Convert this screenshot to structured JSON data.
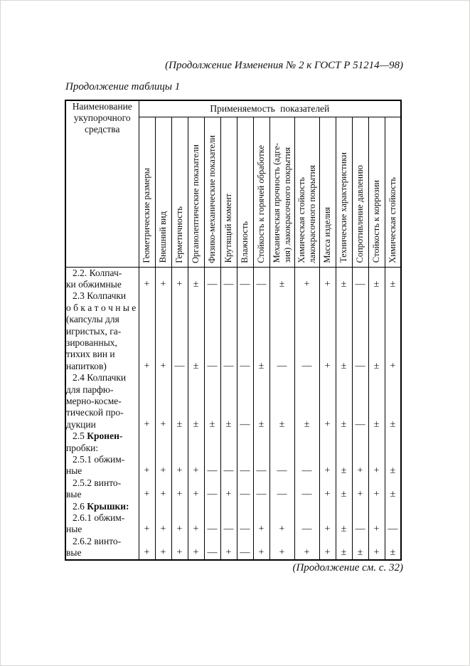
{
  "page": {
    "header_note": "(Продолжение Изменения № 2 к ГОСТ  Р 51214—98)",
    "table_caption": "Продолжение таблицы 1",
    "footer_note": "(Продолжение см. с. 32)"
  },
  "table": {
    "corner_header": "Наименование\nукупорочного\nсредства",
    "group_header": "Применяемость показателей",
    "columns": [
      "Геометрические размеры",
      "Внешний вид",
      "Герметичность",
      "Органолептические показатели",
      "Физико-механические показатели",
      "Крутящий момент",
      "Влажность",
      "Стойкость к горячей обработке",
      "Механическая прочность (адге-\nзия) лакокрасочного покрытия",
      "Химическая стойкость\nлакокрасочного покрытия",
      "Масса изделия",
      "Технические характеристики",
      "Сопротивление давлению",
      "Стойкость к коррозии",
      "Химическая стойкость"
    ],
    "rows": [
      {
        "label": "2.2. Колпач-\nки обжимные",
        "values": [
          "+",
          "+",
          "+",
          "±",
          "—",
          "—",
          "—",
          "—",
          "±",
          "+",
          "+",
          "±",
          "—",
          "±",
          "±"
        ]
      },
      {
        "label": "2.3 Колпачки\nо б к а т о ч н ы е\n(капсулы для\nигристых, га-\nзированных,\nтихих вин и\nнапитков)",
        "values": [
          "+",
          "+",
          "—",
          "±",
          "—",
          "—",
          "—",
          "±",
          "—",
          "—",
          "+",
          "±",
          "—",
          "±",
          "+"
        ]
      },
      {
        "label": "2.4 Колпачки\nдля  парфю-\nмерно-косме-\nтической про-\nдукции",
        "values": [
          "+",
          "+",
          "±",
          "±",
          "±",
          "±",
          "—",
          "±",
          "±",
          "±",
          "+",
          "±",
          "—",
          "±",
          "±"
        ]
      },
      {
        "label": "2.5 Кронен-\nпробки:",
        "label_parts": [
          {
            "text": "2.5 ",
            "bold": false
          },
          {
            "text": "Кронен-",
            "bold": true
          },
          {
            "text": "\nпробки:",
            "bold": false
          }
        ],
        "values": []
      },
      {
        "label": "2.5.1 обжим-\nные",
        "values": [
          "+",
          "+",
          "+",
          "+",
          "—",
          "—",
          "—",
          "—",
          "—",
          "—",
          "+",
          "±",
          "+",
          "+",
          "±"
        ]
      },
      {
        "label": "2.5.2 винто-\nвые",
        "values": [
          "+",
          "+",
          "+",
          "+",
          "—",
          "+",
          "—",
          "—",
          "—",
          "—",
          "+",
          "±",
          "+",
          "+",
          "±"
        ]
      },
      {
        "label": "2.6 Крышки:",
        "label_parts": [
          {
            "text": "2.6 ",
            "bold": false
          },
          {
            "text": "Крышки:",
            "bold": true
          }
        ],
        "values": []
      },
      {
        "label": "2.6.1 обжим-\nные",
        "values": [
          "+",
          "+",
          "+",
          "+",
          "—",
          "—",
          "—",
          "+",
          "+",
          "—",
          "+",
          "±",
          "—",
          "+",
          "—"
        ]
      },
      {
        "label": "2.6.2 винто-\nвые",
        "values": [
          "+",
          "+",
          "+",
          "+",
          "—",
          "+",
          "—",
          "+",
          "+",
          "+",
          "+",
          "±",
          "±",
          "+",
          "±"
        ]
      }
    ],
    "layout": {
      "label_col_width": 103,
      "std_col_width": 23,
      "wide_col_width": 35
    }
  }
}
